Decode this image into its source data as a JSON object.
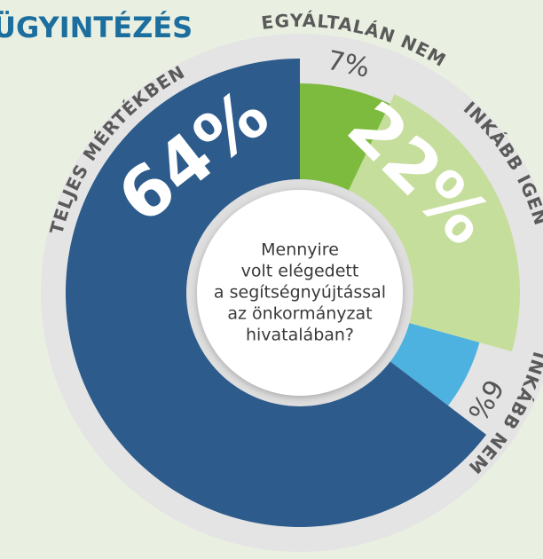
{
  "chart_data": {
    "type": "pie",
    "title": "ÜGYINTÉZÉS",
    "question": [
      "Mennyire",
      "volt elégedett",
      "a segítségnyújtással",
      "az önkormányzat",
      "hivatalában?"
    ],
    "categories": [
      "EGYÁLTALÁN NEM",
      "INKÁBB IGEN",
      "INKÁBB NEM",
      "TELJES MÉRTÉKBEN"
    ],
    "values": [
      7,
      22,
      6,
      64
    ],
    "value_labels": [
      "7%",
      "22%",
      "6%",
      "64%"
    ],
    "colors": [
      "#7dbb3e",
      "#c6de9c",
      "#4db2df",
      "#2c5b8c"
    ]
  }
}
